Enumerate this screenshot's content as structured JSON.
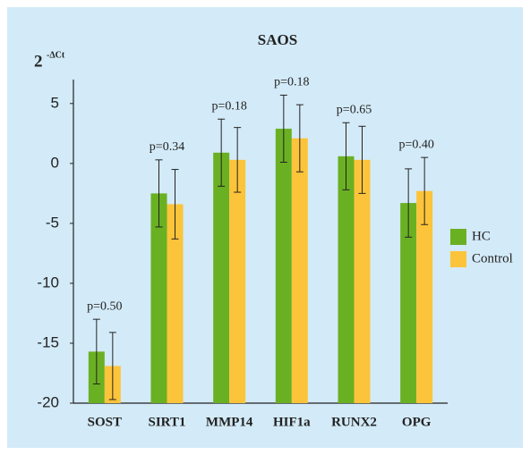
{
  "chart_data": {
    "type": "bar",
    "title": "SAOS",
    "ylabel": "2",
    "ylabel_superscript": "-ΔCt",
    "categories": [
      "SOST",
      "SIRT1",
      "MMP14",
      "HIF1a",
      "RUNX2",
      "OPG"
    ],
    "annotations": [
      "p=0.50",
      "p=0.34",
      "p=0.18",
      "p=0.18",
      "p=0.65",
      "p=0.40"
    ],
    "series": [
      {
        "name": "HC",
        "color": "#6ab023",
        "values": [
          -15.7,
          -2.5,
          0.9,
          2.9,
          0.6,
          -3.3
        ],
        "errors": [
          2.7,
          2.8,
          2.8,
          2.8,
          2.8,
          2.85
        ]
      },
      {
        "name": "Control",
        "color": "#fcc43a",
        "values": [
          -16.9,
          -3.4,
          0.3,
          2.1,
          0.3,
          -2.3
        ],
        "errors": [
          2.8,
          2.9,
          2.7,
          2.8,
          2.8,
          2.8
        ]
      }
    ],
    "ylim": [
      -20,
      7
    ],
    "yticks": [
      -20,
      -15,
      -10,
      -5,
      0,
      5
    ],
    "grid": false,
    "legend": "right"
  }
}
